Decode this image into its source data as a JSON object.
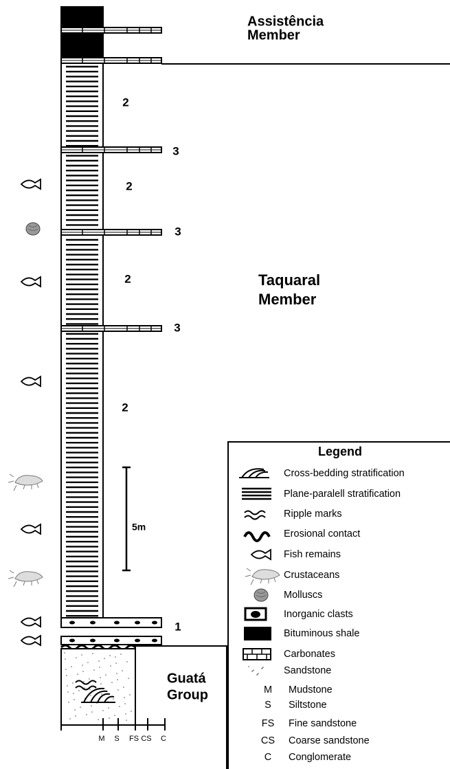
{
  "units": [
    {
      "lines": [
        "Assistência",
        "Member"
      ]
    },
    {
      "lines": [
        "Taquaral",
        "Member"
      ]
    },
    {
      "lines": [
        "Guatá",
        "Group"
      ]
    }
  ],
  "facies_labels": [
    "2",
    "3",
    "2",
    "3",
    "2",
    "3",
    "2",
    "1"
  ],
  "scale_label": "5m",
  "grain_size_axis": [
    "M",
    "S",
    "FS",
    "CS",
    "C"
  ],
  "legend": {
    "title": "Legend",
    "items": [
      "Cross-bedding stratification",
      "Plane-paralell stratification",
      "Ripple marks",
      "Erosional contact",
      "Fish remains",
      "Crustaceans",
      "Molluscs",
      "Inorganic clasts",
      "Bituminous shale",
      "Carbonates",
      "Sandstone"
    ],
    "abbreviations": [
      {
        "code": "M",
        "label": "Mudstone"
      },
      {
        "code": "S",
        "label": "Siltstone"
      },
      {
        "code": "FS",
        "label": "Fine sandstone"
      },
      {
        "code": "CS",
        "label": "Coarse sandstone"
      },
      {
        "code": "C",
        "label": "Conglomerate"
      }
    ]
  }
}
